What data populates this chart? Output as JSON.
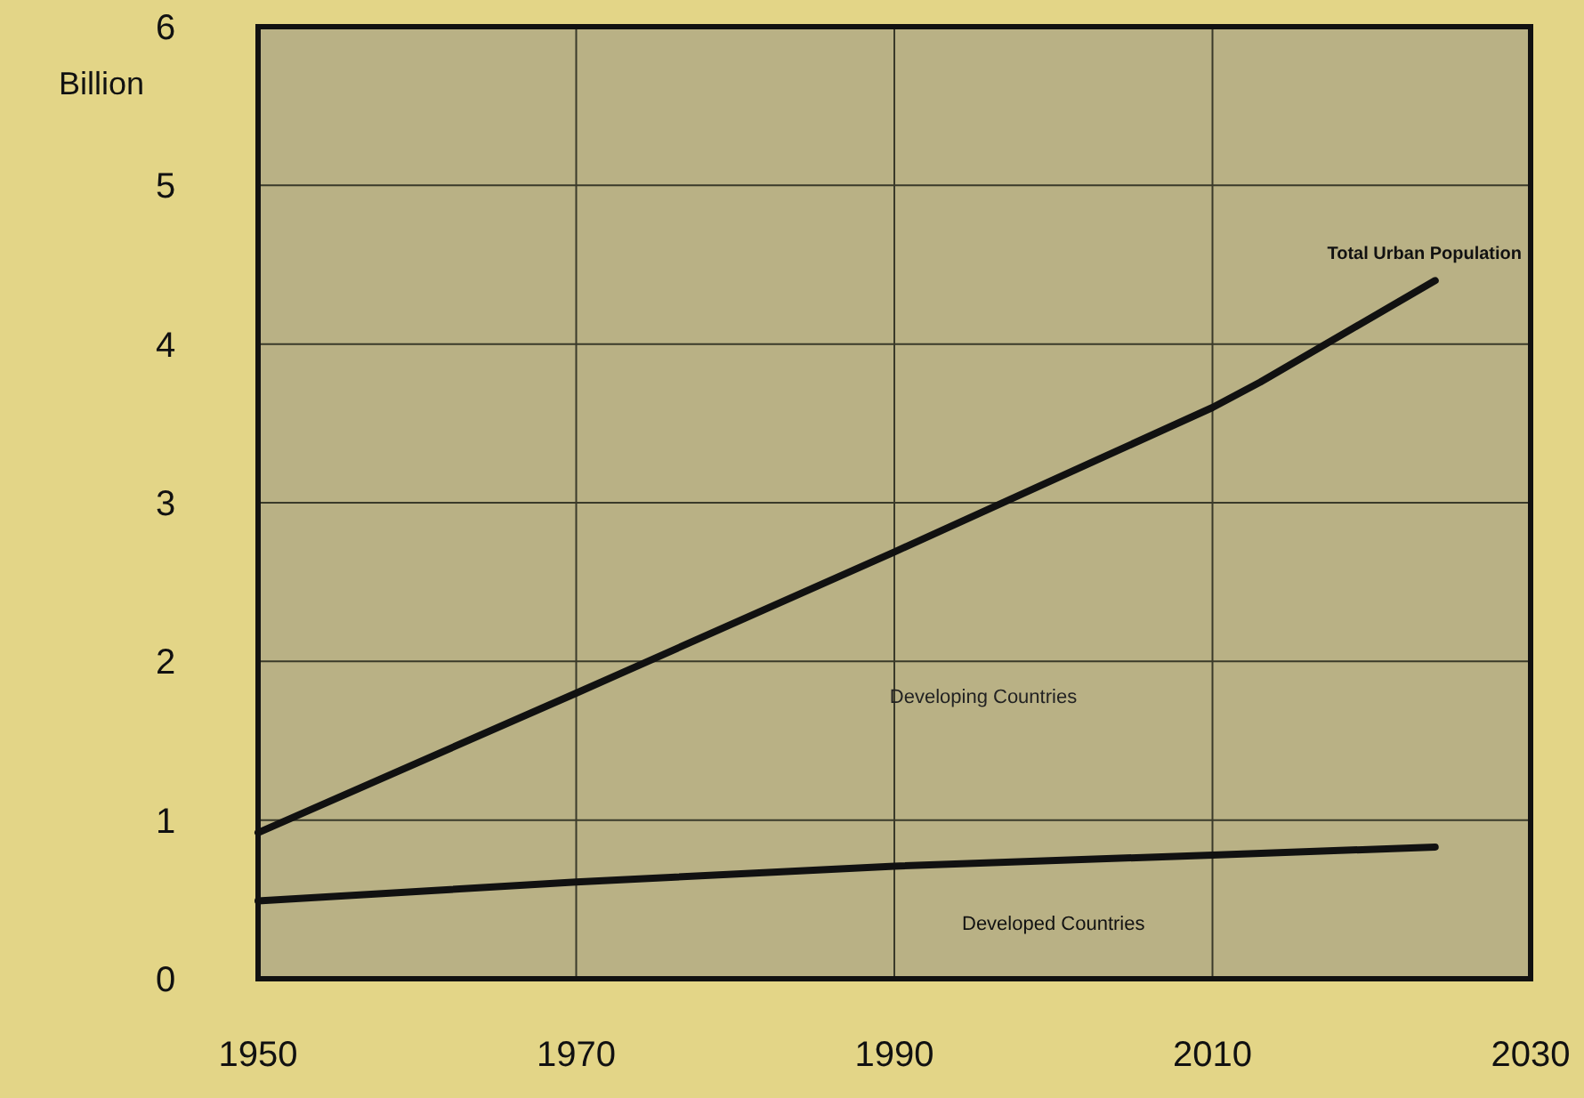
{
  "chart_data": {
    "type": "line",
    "ylabel": "Billion",
    "x": [
      1950,
      1970,
      1990,
      2010,
      2013,
      2024
    ],
    "series": [
      {
        "name": "Total Urban Population",
        "color": "#111111",
        "values": [
          0.92,
          1.8,
          2.69,
          3.6,
          3.76,
          4.4
        ]
      },
      {
        "name": "Developed Countries",
        "color": "#111111",
        "x": [
          1950,
          1970,
          1990,
          2010,
          2024
        ],
        "values": [
          0.49,
          0.61,
          0.71,
          0.78,
          0.83
        ]
      }
    ],
    "annotations": [
      "Developing Countries"
    ],
    "xlim": [
      1950,
      2030
    ],
    "xticks": [
      1950,
      1970,
      1990,
      2010,
      2030
    ],
    "ylim": [
      0,
      6
    ],
    "yticks": [
      0,
      1,
      2,
      3,
      4,
      5,
      6
    ],
    "grid": true,
    "line_style": "solid",
    "marker": "none"
  }
}
